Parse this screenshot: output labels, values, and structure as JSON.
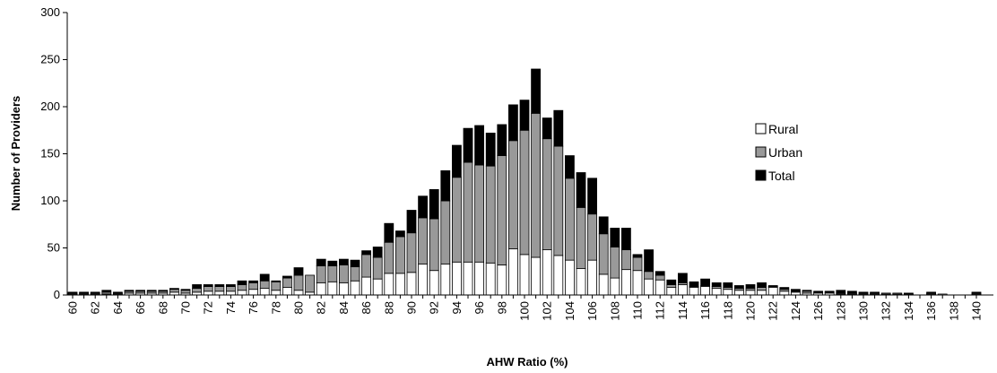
{
  "chart_data": {
    "type": "bar",
    "stacked": true,
    "xlabel": "AHW Ratio (%)",
    "ylabel": "Number of Providers",
    "ylim": [
      0,
      300
    ],
    "yticks": [
      0,
      50,
      100,
      150,
      200,
      250,
      300
    ],
    "x": [
      60,
      61,
      62,
      63,
      64,
      65,
      66,
      67,
      68,
      69,
      70,
      71,
      72,
      73,
      74,
      75,
      76,
      77,
      78,
      79,
      80,
      81,
      82,
      83,
      84,
      85,
      86,
      87,
      88,
      89,
      90,
      91,
      92,
      93,
      94,
      95,
      96,
      97,
      98,
      99,
      100,
      101,
      102,
      103,
      104,
      105,
      106,
      107,
      108,
      109,
      110,
      111,
      112,
      113,
      114,
      115,
      116,
      117,
      118,
      119,
      120,
      121,
      122,
      123,
      124,
      125,
      126,
      127,
      128,
      129,
      130,
      131,
      132,
      133,
      134,
      135,
      136,
      137,
      138,
      139,
      140
    ],
    "xtick_labels": [
      "60",
      "62",
      "64",
      "66",
      "68",
      "70",
      "72",
      "74",
      "76",
      "78",
      "80",
      "82",
      "84",
      "86",
      "88",
      "90",
      "92",
      "94",
      "96",
      "98",
      "100",
      "102",
      "104",
      "106",
      "108",
      "110",
      "112",
      "114",
      "116",
      "118",
      "120",
      "122",
      "124",
      "126",
      "128",
      "130",
      "132",
      "134",
      "136",
      "138",
      "140"
    ],
    "series": [
      {
        "name": "Rural",
        "color": "#ffffff",
        "values": [
          1,
          1,
          1,
          1,
          1,
          2,
          2,
          2,
          2,
          3,
          2,
          3,
          4,
          4,
          4,
          5,
          6,
          7,
          5,
          8,
          5,
          3,
          13,
          14,
          13,
          15,
          19,
          17,
          23,
          23,
          24,
          33,
          26,
          33,
          35,
          35,
          35,
          34,
          32,
          49,
          43,
          40,
          48,
          42,
          37,
          28,
          37,
          22,
          18,
          27,
          26,
          17,
          16,
          8,
          11,
          8,
          9,
          7,
          6,
          5,
          5,
          5,
          8,
          4,
          3,
          2,
          2,
          2,
          1,
          1,
          1,
          1,
          1,
          1,
          1,
          0,
          1,
          1,
          0,
          0,
          1
        ]
      },
      {
        "name": "Urban",
        "color": "#999999",
        "values": [
          1,
          1,
          1,
          2,
          1,
          2,
          2,
          2,
          2,
          3,
          3,
          4,
          5,
          5,
          5,
          6,
          7,
          8,
          9,
          10,
          16,
          18,
          18,
          17,
          19,
          15,
          24,
          23,
          33,
          39,
          42,
          49,
          55,
          67,
          90,
          106,
          103,
          103,
          116,
          115,
          132,
          153,
          118,
          116,
          87,
          65,
          49,
          43,
          33,
          21,
          14,
          8,
          5,
          3,
          2,
          1,
          1,
          2,
          2,
          2,
          2,
          3,
          1,
          2,
          1,
          2,
          1,
          1,
          1,
          1,
          1,
          1,
          1,
          1,
          0,
          0,
          1,
          0,
          0,
          0,
          1
        ]
      },
      {
        "name": "Total",
        "color": "#000000",
        "values": [
          1,
          1,
          1,
          2,
          1,
          1,
          1,
          1,
          1,
          1,
          1,
          4,
          2,
          2,
          2,
          4,
          2,
          7,
          1,
          2,
          8,
          0,
          7,
          5,
          6,
          7,
          4,
          11,
          20,
          6,
          24,
          23,
          31,
          32,
          34,
          36,
          42,
          35,
          33,
          38,
          32,
          47,
          22,
          38,
          24,
          37,
          38,
          18,
          20,
          23,
          3,
          23,
          4,
          5,
          10,
          5,
          7,
          4,
          5,
          3,
          4,
          5,
          1,
          2,
          2,
          1,
          1,
          1,
          3,
          2,
          1,
          1,
          0,
          0,
          1,
          0,
          1,
          0,
          0,
          0,
          1
        ]
      }
    ],
    "legend": {
      "position": "right",
      "entries": [
        "Rural",
        "Urban",
        "Total"
      ]
    },
    "grid": false
  }
}
